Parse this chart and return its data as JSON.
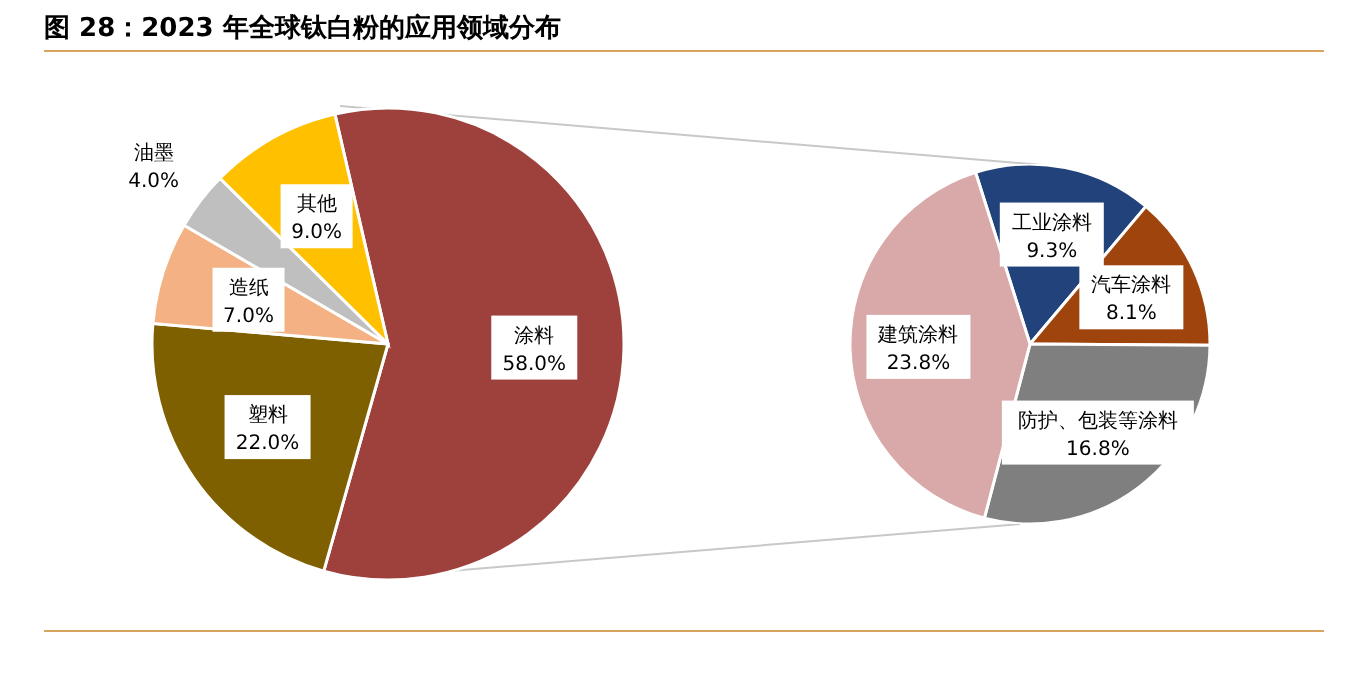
{
  "chart_data": [
    {
      "type": "pie",
      "title": "图 28：2023 年全球钛白粉的应用领域分布",
      "categories": [
        "涂料",
        "塑料",
        "造纸",
        "油墨",
        "其他"
      ],
      "values": [
        58.0,
        22.0,
        7.0,
        4.0,
        9.0
      ],
      "colors": [
        "#9e403c",
        "#7f6000",
        "#f4b183",
        "#bfbfbf",
        "#ffc000"
      ],
      "value_labels": [
        "58.0%",
        "22.0%",
        "7.0%",
        "4.0%",
        "9.0%"
      ]
    },
    {
      "type": "pie",
      "categories": [
        "工业涂料",
        "汽车涂料",
        "防护、包装等涂料",
        "建筑涂料"
      ],
      "values": [
        9.3,
        8.1,
        16.8,
        23.8
      ],
      "colors": [
        "#21427a",
        "#9e440c",
        "#7f7f7f",
        "#d9a9a9"
      ],
      "value_labels": [
        "9.3%",
        "8.1%",
        "16.8%",
        "23.8%"
      ]
    }
  ]
}
